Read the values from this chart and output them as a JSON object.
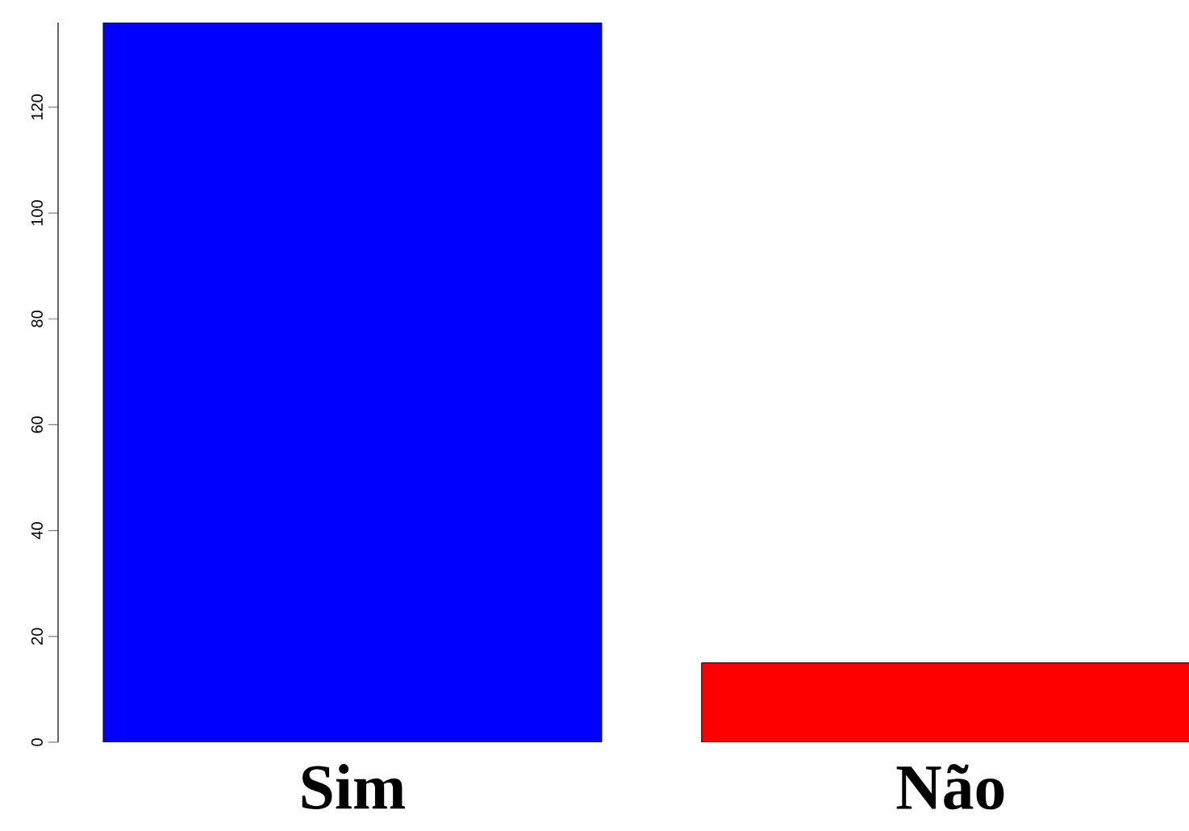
{
  "chart_data": {
    "type": "bar",
    "categories": [
      "Sim",
      "Não"
    ],
    "values": [
      136,
      15
    ],
    "colors": [
      "#0000ff",
      "#ff0000"
    ],
    "ylim": [
      0,
      136
    ],
    "yticks": [
      0,
      20,
      40,
      60,
      80,
      100,
      120
    ]
  }
}
